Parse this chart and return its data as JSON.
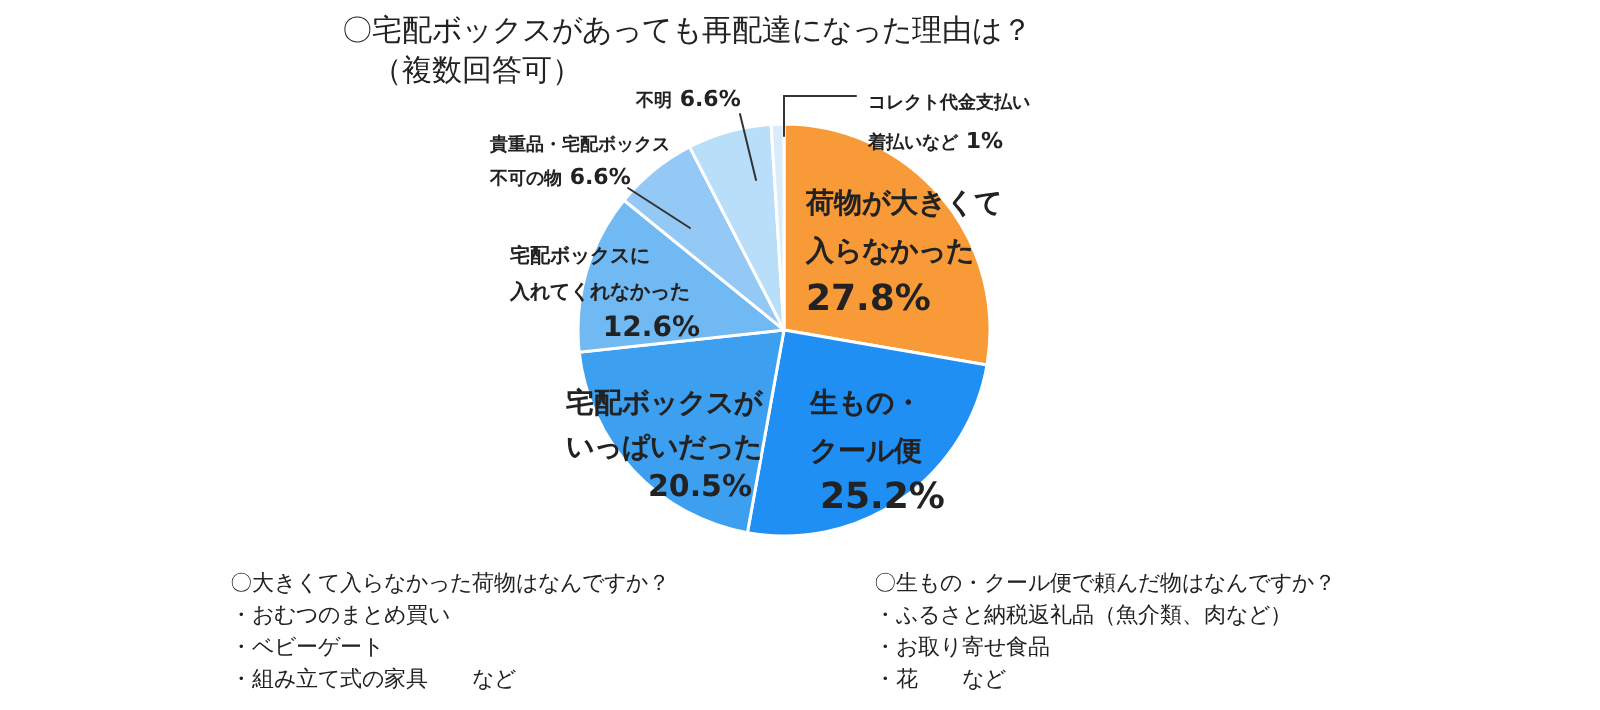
{
  "chart_data": {
    "type": "pie",
    "title": "〇宅配ボックスがあっても再配達になった理由は？",
    "subtitle": "（複数回答可）",
    "categories": [
      "荷物が大きくて入らなかった",
      "生もの・クール便",
      "宅配ボックスがいっぱいだった",
      "宅配ボックスに入れてくれなかった",
      "貴重品・宅配ボックス不可の物",
      "不明",
      "コレクト代金支払い着払いなど"
    ],
    "values": [
      27.8,
      25.2,
      20.5,
      12.6,
      6.6,
      6.6,
      1
    ],
    "value_labels": [
      "27.8%",
      "25.2%",
      "20.5%",
      "12.6%",
      "6.6%",
      "6.6%",
      "1%"
    ],
    "colors": [
      "#f89a38",
      "#1f8ff3",
      "#3d9ff0",
      "#70b9f2",
      "#94c9f5",
      "#b8defa",
      "#d9ecfc"
    ],
    "annotations": [
      "〇大きくて入らなかった荷物はなんですか？",
      "・おむつのまとめ買い",
      "・ベビーゲート",
      "・組み立て式の家具　　など",
      "〇生もの・クール便で頼んだ物はなんですか？",
      "・ふるさと納税返礼品（魚介類、肉など）",
      "・お取り寄せ食品",
      "・花　　など"
    ]
  }
}
